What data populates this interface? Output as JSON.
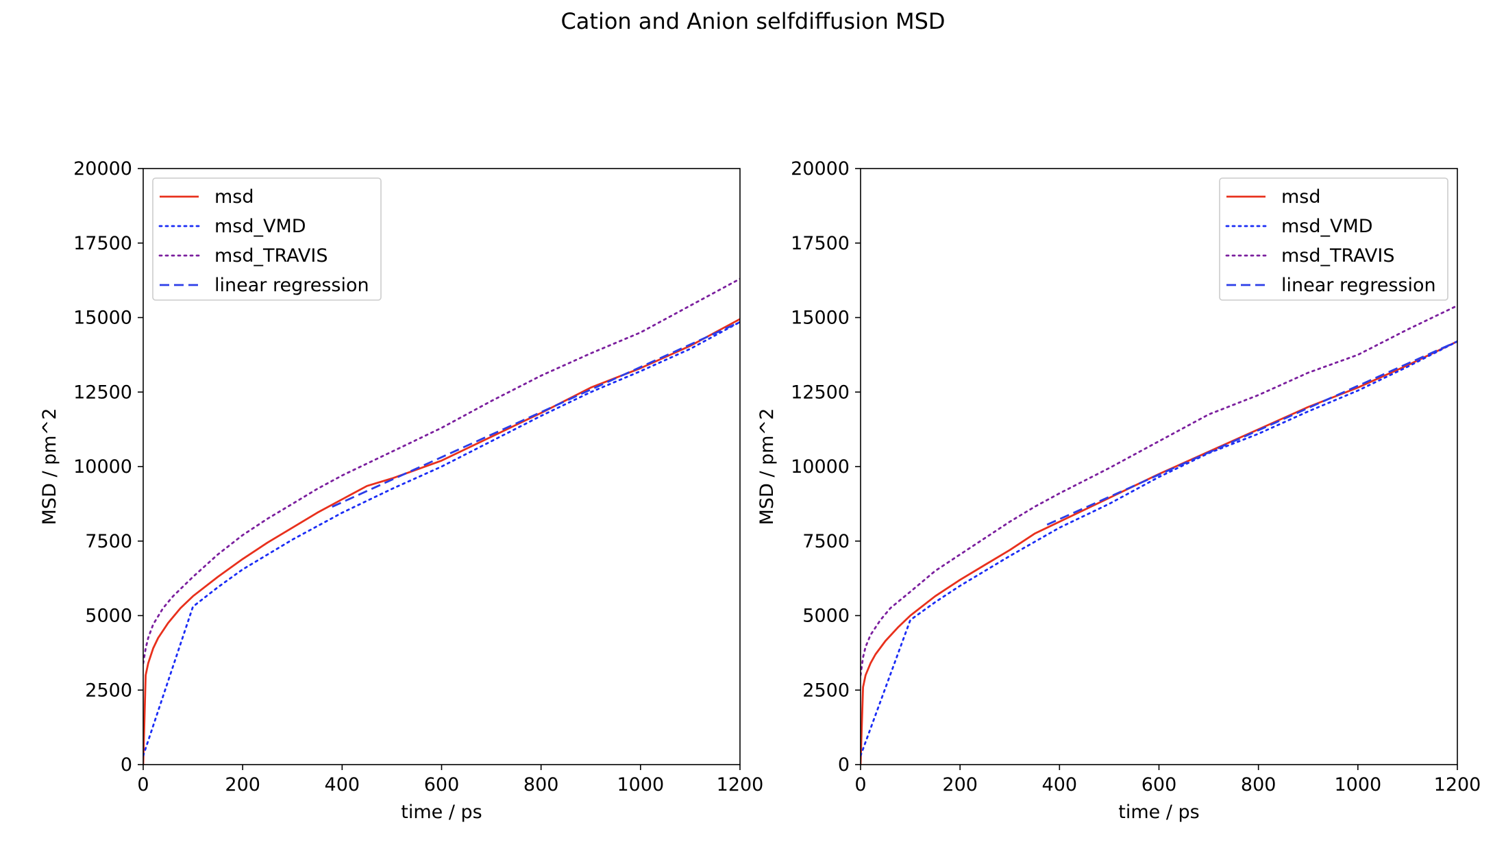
{
  "figure": {
    "title": "Cation and Anion selfdiffusion MSD"
  },
  "chart_data": [
    {
      "type": "line",
      "title": "",
      "xlabel": "time / ps",
      "ylabel": "MSD / pm^2",
      "xlim": [
        0,
        1200
      ],
      "ylim": [
        0,
        20000
      ],
      "xticks": [
        "0",
        "200",
        "400",
        "600",
        "800",
        "1000",
        "1200"
      ],
      "yticks": [
        "0",
        "2500",
        "5000",
        "7500",
        "10000",
        "12500",
        "15000",
        "17500",
        "20000"
      ],
      "grid": false,
      "legend_position": "upper left",
      "series": [
        {
          "name": "msd",
          "color": "#e8301c",
          "style": "solid",
          "x": [
            0,
            5,
            10,
            20,
            30,
            50,
            75,
            100,
            150,
            200,
            250,
            300,
            350,
            400,
            450,
            500,
            600,
            700,
            800,
            900,
            1000,
            1100,
            1200
          ],
          "y": [
            0,
            3000,
            3400,
            3900,
            4250,
            4750,
            5250,
            5650,
            6300,
            6900,
            7450,
            7950,
            8450,
            8900,
            9350,
            9600,
            10200,
            11000,
            11800,
            12650,
            13300,
            14050,
            14950
          ]
        },
        {
          "name": "msd_VMD",
          "color": "#1a2cf5",
          "style": "dotted",
          "x": [
            0,
            100,
            150,
            200,
            300,
            400,
            500,
            600,
            700,
            800,
            900,
            1000,
            1100,
            1200
          ],
          "y": [
            300,
            5300,
            5950,
            6550,
            7550,
            8450,
            9250,
            10000,
            10850,
            11700,
            12500,
            13200,
            13950,
            14850
          ]
        },
        {
          "name": "msd_TRAVIS",
          "color": "#7b1f9e",
          "style": "dotted",
          "x": [
            0,
            5,
            10,
            20,
            40,
            60,
            100,
            150,
            200,
            250,
            300,
            350,
            400,
            500,
            600,
            700,
            800,
            900,
            1000,
            1100,
            1200
          ],
          "y": [
            3400,
            3900,
            4250,
            4700,
            5250,
            5650,
            6300,
            7050,
            7700,
            8250,
            8750,
            9250,
            9700,
            10500,
            11300,
            12200,
            13050,
            13800,
            14500,
            15400,
            16300
          ]
        },
        {
          "name": "linear regression",
          "color": "#2b3de8",
          "style": "dashed",
          "x": [
            380,
            1200
          ],
          "y": [
            8650,
            14850
          ]
        }
      ]
    },
    {
      "type": "line",
      "title": "",
      "xlabel": "time / ps",
      "ylabel": "MSD / pm^2",
      "xlim": [
        0,
        1200
      ],
      "ylim": [
        0,
        20000
      ],
      "xticks": [
        "0",
        "200",
        "400",
        "600",
        "800",
        "1000",
        "1200"
      ],
      "yticks": [
        "0",
        "2500",
        "5000",
        "7500",
        "10000",
        "12500",
        "15000",
        "17500",
        "20000"
      ],
      "grid": false,
      "legend_position": "upper right",
      "series": [
        {
          "name": "msd",
          "color": "#e8301c",
          "style": "solid",
          "x": [
            0,
            5,
            10,
            20,
            30,
            50,
            75,
            100,
            150,
            200,
            250,
            300,
            350,
            400,
            500,
            600,
            700,
            800,
            900,
            1000,
            1100,
            1200
          ],
          "y": [
            0,
            2600,
            3000,
            3400,
            3700,
            4150,
            4600,
            5000,
            5650,
            6200,
            6700,
            7200,
            7750,
            8150,
            8950,
            9750,
            10500,
            11250,
            12000,
            12650,
            13400,
            14200
          ]
        },
        {
          "name": "msd_VMD",
          "color": "#1a2cf5",
          "style": "dotted",
          "x": [
            0,
            100,
            150,
            200,
            300,
            400,
            500,
            600,
            700,
            800,
            900,
            1000,
            1100,
            1200
          ],
          "y": [
            300,
            4850,
            5450,
            6000,
            7000,
            7950,
            8750,
            9650,
            10450,
            11100,
            11850,
            12550,
            13350,
            14200
          ]
        },
        {
          "name": "msd_TRAVIS",
          "color": "#7b1f9e",
          "style": "dotted",
          "x": [
            0,
            5,
            10,
            20,
            40,
            60,
            100,
            150,
            200,
            250,
            300,
            350,
            400,
            500,
            600,
            700,
            800,
            900,
            1000,
            1100,
            1200
          ],
          "y": [
            3000,
            3600,
            3950,
            4350,
            4850,
            5250,
            5800,
            6500,
            7050,
            7600,
            8150,
            8650,
            9100,
            9950,
            10850,
            11750,
            12400,
            13150,
            13750,
            14600,
            15400
          ]
        },
        {
          "name": "linear regression",
          "color": "#2b3de8",
          "style": "dashed",
          "x": [
            375,
            1200
          ],
          "y": [
            8050,
            14200
          ]
        }
      ]
    }
  ]
}
